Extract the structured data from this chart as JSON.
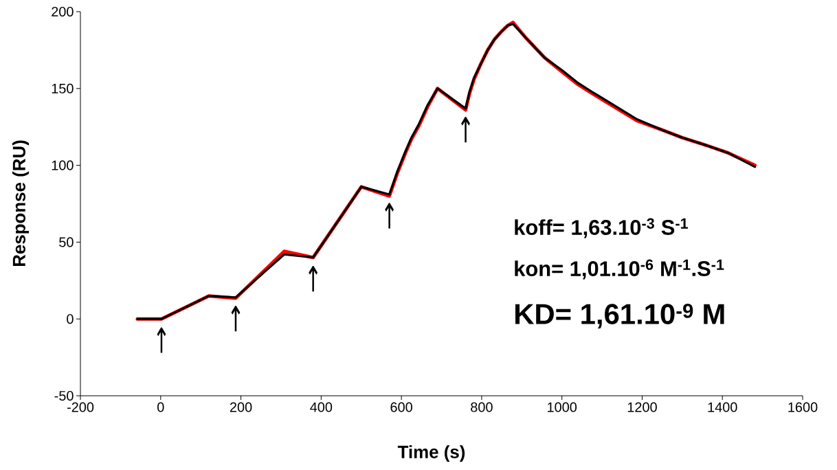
{
  "chart_data": {
    "type": "line",
    "xlabel": "Time (s)",
    "ylabel": "Response (RU)",
    "xlim": [
      -200,
      1600
    ],
    "ylim": [
      -50,
      200
    ],
    "xticks": [
      -200,
      0,
      200,
      400,
      600,
      800,
      1000,
      1200,
      1400,
      1600
    ],
    "yticks": [
      -50,
      0,
      50,
      100,
      150,
      200
    ],
    "series": [
      {
        "color": "#ff0000",
        "x": [
          -58,
          2,
          120,
          187,
          308,
          380,
          500,
          570,
          590,
          610,
          625,
          644,
          665,
          690,
          760,
          770,
          781,
          798,
          815,
          832,
          849,
          865,
          878,
          910,
          957,
          1000,
          1038,
          1080,
          1118,
          1187,
          1250,
          1300,
          1360,
          1415,
          1481
        ],
        "values": [
          0,
          0,
          15,
          13.5,
          44,
          40,
          86,
          80,
          95,
          108,
          117,
          126,
          138,
          150,
          136,
          147,
          156,
          166,
          175,
          182,
          187,
          191,
          193,
          183,
          170,
          161,
          153,
          146,
          140,
          129,
          123,
          118,
          113,
          108,
          100
        ]
      },
      {
        "color": "#000000",
        "x": [
          -58,
          2,
          120,
          187,
          308,
          380,
          500,
          570,
          590,
          610,
          625,
          644,
          665,
          690,
          760,
          770,
          781,
          798,
          815,
          832,
          849,
          865,
          878,
          910,
          957,
          1000,
          1038,
          1080,
          1118,
          1187,
          1250,
          1300,
          1360,
          1415,
          1481
        ],
        "values": [
          0,
          0,
          15,
          14,
          42,
          40,
          86,
          81,
          96,
          109,
          118,
          127,
          139,
          150,
          137,
          148,
          157,
          166,
          175,
          182,
          187,
          191,
          192,
          183,
          170,
          162,
          154,
          147,
          141,
          130,
          123,
          118,
          113,
          108,
          99
        ]
      }
    ],
    "annotations": [
      {
        "text": "↑",
        "x": 2,
        "y": 0
      },
      {
        "text": "↑",
        "x": 187,
        "y": 14
      },
      {
        "text": "↑",
        "x": 380,
        "y": 40
      },
      {
        "text": "↑",
        "x": 570,
        "y": 81
      },
      {
        "text": "↑",
        "x": 760,
        "y": 137
      },
      "koff= 1,63.10$^{-3}$ S$^{-1}$",
      "kon= 1,01.10$^{-6}$  M$^{-1}$.S$^{-1}$",
      "KD= 1,61.10$^{-9}$ M"
    ]
  }
}
